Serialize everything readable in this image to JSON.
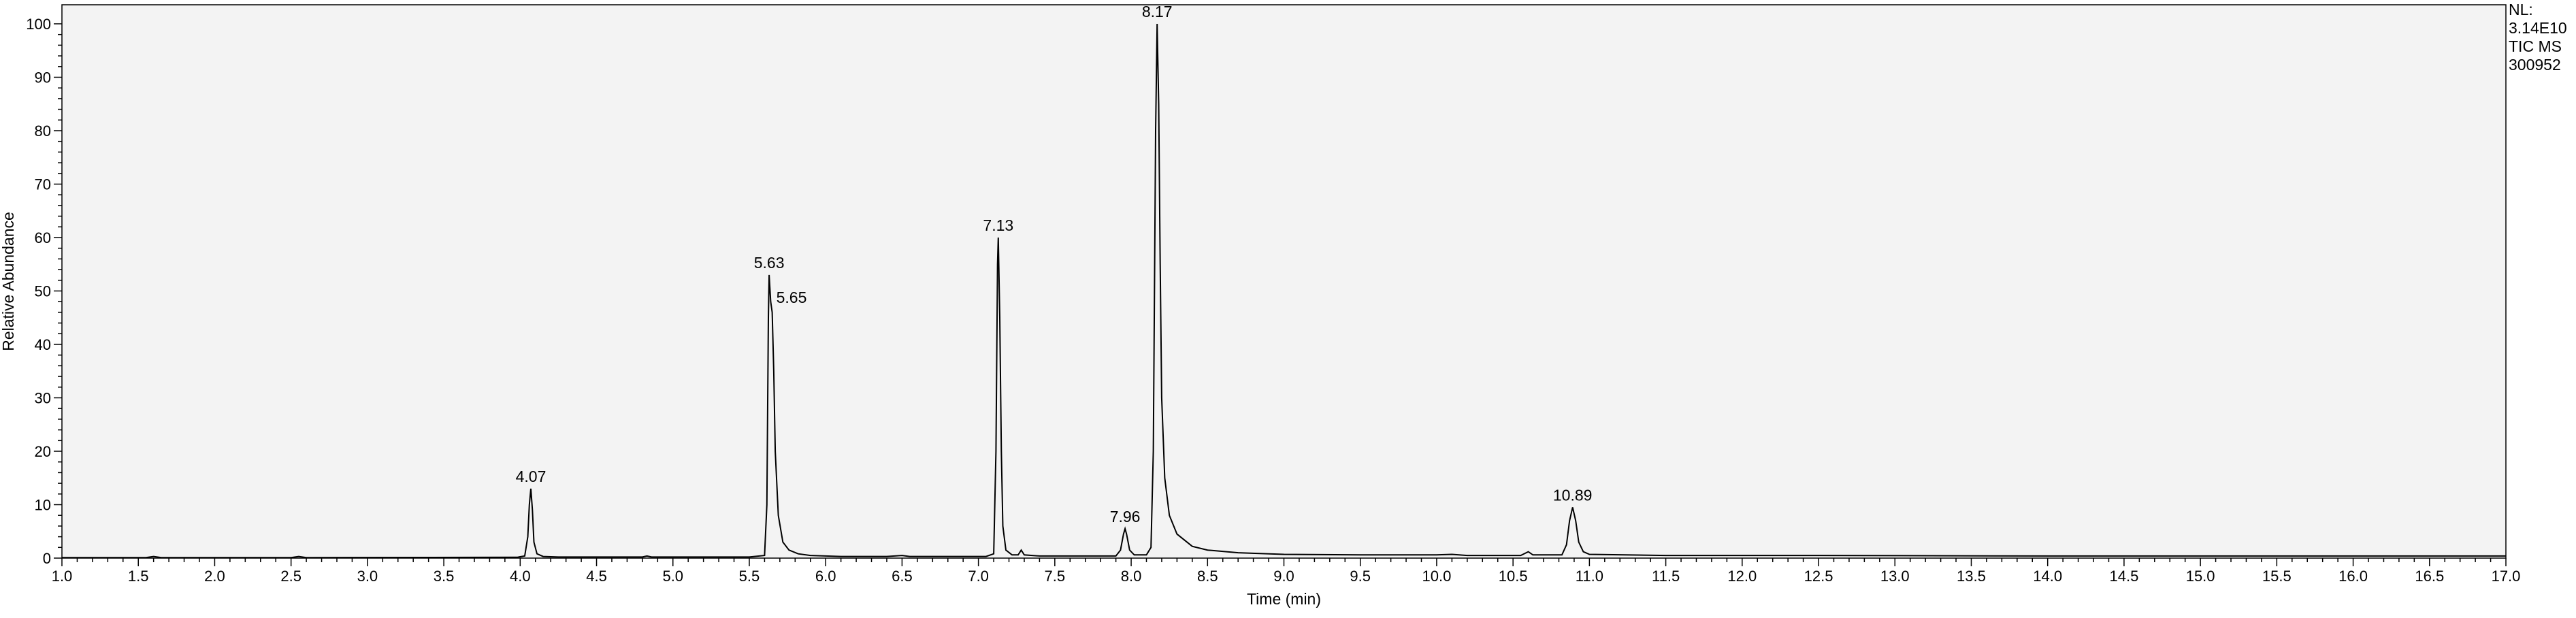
{
  "chart_data": {
    "type": "line",
    "xlabel": "Time (min)",
    "ylabel": "Relative Abundance",
    "xlim": [
      1.0,
      17.0
    ],
    "ylim": [
      0,
      100
    ],
    "x_ticks": [
      "1.0",
      "1.5",
      "2.0",
      "2.5",
      "3.0",
      "3.5",
      "4.0",
      "4.5",
      "5.0",
      "5.5",
      "6.0",
      "6.5",
      "7.0",
      "7.5",
      "8.0",
      "8.5",
      "9.0",
      "9.5",
      "10.0",
      "10.5",
      "11.0",
      "11.5",
      "12.0",
      "12.5",
      "13.0",
      "13.5",
      "14.0",
      "14.5",
      "15.0",
      "15.5",
      "16.0",
      "16.5",
      "17.0"
    ],
    "y_ticks": [
      "0",
      "10",
      "20",
      "30",
      "40",
      "50",
      "60",
      "70",
      "80",
      "90",
      "100"
    ],
    "info": [
      "NL:",
      "3.14E10",
      "TIC  MS",
      "300952"
    ],
    "peaks": [
      {
        "rt": 4.07,
        "label": "4.07",
        "height": 13
      },
      {
        "rt": 5.63,
        "label": "5.63",
        "height": 53
      },
      {
        "rt": 5.65,
        "label": "5.65",
        "height": 46
      },
      {
        "rt": 7.13,
        "label": "7.13",
        "height": 60
      },
      {
        "rt": 7.96,
        "label": "7.96",
        "height": 5.5
      },
      {
        "rt": 8.17,
        "label": "8.17",
        "height": 100
      },
      {
        "rt": 10.89,
        "label": "10.89",
        "height": 9.5
      }
    ],
    "trace": [
      [
        1.0,
        0.1
      ],
      [
        1.55,
        0.1
      ],
      [
        1.6,
        0.3
      ],
      [
        1.65,
        0.1
      ],
      [
        2.5,
        0.1
      ],
      [
        2.55,
        0.3
      ],
      [
        2.6,
        0.1
      ],
      [
        3.98,
        0.15
      ],
      [
        4.03,
        0.4
      ],
      [
        4.05,
        4
      ],
      [
        4.06,
        10
      ],
      [
        4.07,
        13
      ],
      [
        4.08,
        9
      ],
      [
        4.09,
        3
      ],
      [
        4.11,
        0.8
      ],
      [
        4.15,
        0.3
      ],
      [
        4.25,
        0.2
      ],
      [
        4.8,
        0.2
      ],
      [
        4.83,
        0.4
      ],
      [
        4.86,
        0.2
      ],
      [
        5.5,
        0.2
      ],
      [
        5.6,
        0.5
      ],
      [
        5.615,
        10
      ],
      [
        5.625,
        45
      ],
      [
        5.63,
        53
      ],
      [
        5.64,
        48
      ],
      [
        5.65,
        46
      ],
      [
        5.66,
        35
      ],
      [
        5.67,
        20
      ],
      [
        5.69,
        8
      ],
      [
        5.72,
        3
      ],
      [
        5.76,
        1.5
      ],
      [
        5.82,
        0.8
      ],
      [
        5.9,
        0.5
      ],
      [
        6.1,
        0.3
      ],
      [
        6.4,
        0.3
      ],
      [
        6.5,
        0.5
      ],
      [
        6.55,
        0.3
      ],
      [
        7.05,
        0.3
      ],
      [
        7.1,
        0.8
      ],
      [
        7.115,
        20
      ],
      [
        7.125,
        55
      ],
      [
        7.13,
        60
      ],
      [
        7.14,
        45
      ],
      [
        7.15,
        20
      ],
      [
        7.16,
        6
      ],
      [
        7.18,
        1.5
      ],
      [
        7.22,
        0.6
      ],
      [
        7.26,
        0.6
      ],
      [
        7.28,
        1.5
      ],
      [
        7.3,
        0.6
      ],
      [
        7.4,
        0.4
      ],
      [
        7.9,
        0.4
      ],
      [
        7.93,
        1.5
      ],
      [
        7.95,
        4.5
      ],
      [
        7.96,
        5.5
      ],
      [
        7.97,
        4.5
      ],
      [
        7.99,
        1.5
      ],
      [
        8.02,
        0.6
      ],
      [
        8.1,
        0.6
      ],
      [
        8.13,
        2
      ],
      [
        8.145,
        20
      ],
      [
        8.16,
        80
      ],
      [
        8.17,
        100
      ],
      [
        8.18,
        85
      ],
      [
        8.19,
        55
      ],
      [
        8.2,
        30
      ],
      [
        8.22,
        15
      ],
      [
        8.25,
        8
      ],
      [
        8.3,
        4.5
      ],
      [
        8.4,
        2.2
      ],
      [
        8.5,
        1.5
      ],
      [
        8.7,
        1.0
      ],
      [
        9.0,
        0.7
      ],
      [
        9.5,
        0.6
      ],
      [
        10.0,
        0.6
      ],
      [
        10.1,
        0.7
      ],
      [
        10.2,
        0.5
      ],
      [
        10.55,
        0.5
      ],
      [
        10.6,
        1.2
      ],
      [
        10.63,
        0.6
      ],
      [
        10.82,
        0.6
      ],
      [
        10.85,
        2.5
      ],
      [
        10.87,
        7
      ],
      [
        10.89,
        9.5
      ],
      [
        10.91,
        7
      ],
      [
        10.93,
        3
      ],
      [
        10.96,
        1.2
      ],
      [
        11.0,
        0.7
      ],
      [
        11.5,
        0.5
      ],
      [
        12.5,
        0.5
      ],
      [
        14.0,
        0.4
      ],
      [
        16.0,
        0.4
      ],
      [
        17.0,
        0.4
      ]
    ]
  }
}
